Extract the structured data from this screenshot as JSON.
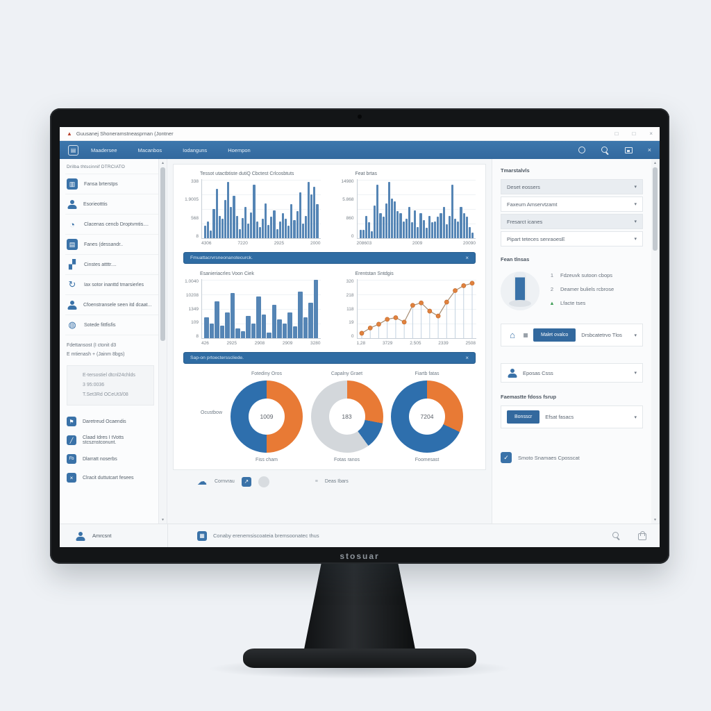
{
  "colors": {
    "menubar_blue": "#33699e",
    "banner_blue": "#2f6ca3",
    "bar_blue": "#5585b5",
    "line_stroke": "#a58a6f",
    "point_orange": "#e0823f",
    "stem_blue": "#c3d2e0",
    "slice_blue": "#2e6fad",
    "slice_orange": "#e87a35",
    "slice_gray": "#d3d7db"
  },
  "icons": {
    "close": "×",
    "minimize": "□",
    "maximize": "□",
    "chevron": "▾",
    "scroll_up": "▴",
    "scroll_down": "▾",
    "app_grid": "▤",
    "logo_triangle": "▲",
    "cloud": "☁",
    "house": "⌂",
    "hamburger": "≡",
    "ext_arrow": "↗",
    "check": "✓",
    "store": "▦"
  },
  "window": {
    "title": "Guusanej Shoneramstneasprnan (Jontner",
    "brand": "stosuar"
  },
  "menubar": {
    "items": [
      "Maadersee",
      "Macanbos",
      "Iodanguns",
      "Hoempon"
    ]
  },
  "sidebar": {
    "header": "Drilba thtscinnif DTRCIATO",
    "items": [
      {
        "label": "Fansa brterstps",
        "icon": "chart-badge-icon",
        "glyph": "▥",
        "style": "badge"
      },
      {
        "label": "Esorieotttis",
        "icon": "person-icon",
        "style": "person"
      },
      {
        "label": "Clacenas cencb Droptvmtis....",
        "icon": "pie-icon",
        "glyph": "◔",
        "style": "glyph"
      },
      {
        "label": "Fanes (dessandr..",
        "icon": "panel-badge-icon",
        "glyph": "▤",
        "style": "badge"
      },
      {
        "label": "Cinstes attttr....",
        "icon": "chart-lines-icon",
        "glyph": "▞",
        "style": "glyph"
      },
      {
        "label": "Iax sotor inanttd tmarsierles",
        "icon": "sync-icon",
        "glyph": "↻",
        "style": "glyph"
      },
      {
        "label": "Cfoenstransele seen itd dcaat...",
        "icon": "person-icon",
        "style": "person"
      },
      {
        "label": "Sotede fittfisfis",
        "icon": "grid-circle-icon",
        "glyph": "◍",
        "style": "glyph"
      }
    ],
    "section2_line1": "Fdettansost (I ctonit d3",
    "section2_line2": "E mtienash + (Jainm 8bgs)",
    "info_box": [
      "E-tersostiel dtcnl24chlds",
      "3 95:0036",
      "T.Set3Rd OCeUt3/08"
    ],
    "links": [
      {
        "label": "Daretreud Ocaendis",
        "icon": "flag-badge-icon",
        "glyph": "⚑"
      },
      {
        "label": "Claad Idres I tVotts stcsznstconunt.",
        "icon": "pencil-badge-icon",
        "glyph": "╱"
      },
      {
        "label": "Dlarratt noserbs",
        "icon": "fb-badge-icon",
        "glyph": "Fb"
      },
      {
        "label": "Clracit duttutcart fesees",
        "icon": "close-badge-icon",
        "glyph": "×"
      }
    ]
  },
  "main": {
    "banners": [
      {
        "text": "Fmuattacrvrsneonanotecurck."
      },
      {
        "text": "Sap-on prtoectersscliede."
      }
    ],
    "bottom_row": {
      "label1": "Cornvrau",
      "label2": "Deas Ibars"
    }
  },
  "right_panel": {
    "heading": "Tmarstalvls",
    "selects": [
      "Deset eossers",
      "Faxeum Amservtzamt",
      "Fresarct icanes",
      "Pipart teteces senraoesE"
    ],
    "section2_heading": "Fean tlnsas",
    "bullets": [
      {
        "marker": "1",
        "text": "Fdzeuvk sutoon cbops"
      },
      {
        "marker": "2",
        "text": "Deamer buliels rcbrose"
      },
      {
        "marker": "▲",
        "text": "Lfacte tses"
      }
    ],
    "action_row": {
      "button": "Malet ovalco",
      "label": "Drsbcatetrvo Tlos"
    },
    "dropdown_row": {
      "label": "Eposas Csss"
    },
    "section3_heading": "Faemastte fdoss fsrup",
    "report_row": {
      "button": "Bonsscr",
      "label": "Efsat fasacs"
    },
    "footer_link": "Smoto Snamaes Cposscat"
  },
  "statusbar": {
    "user": "Amrcsnt",
    "message": "Conaby erenemsiscoateia bremsoonatec thus"
  },
  "chart_data": [
    {
      "type": "bar",
      "title": "Tessot utactbtiste dutiQ Cbctest Crlcosbtuts",
      "values": [
        22,
        30,
        14,
        52,
        88,
        40,
        34,
        68,
        100,
        55,
        75,
        40,
        16,
        36,
        55,
        26,
        46,
        95,
        30,
        20,
        34,
        62,
        24,
        38,
        50,
        16,
        30,
        44,
        34,
        22,
        60,
        32,
        48,
        82,
        26,
        40,
        100,
        78,
        92,
        60
      ],
      "ymax": 105,
      "yticks": [
        "338",
        "1.9005",
        "568",
        "8"
      ],
      "xticks": [
        "4306",
        "7220",
        "2925",
        "2000"
      ],
      "grid": true,
      "legend": "none"
    },
    {
      "type": "bar",
      "title": "Feat brtas",
      "values": [
        15,
        15,
        40,
        28,
        12,
        58,
        95,
        45,
        38,
        62,
        100,
        70,
        65,
        48,
        45,
        30,
        35,
        55,
        28,
        50,
        20,
        45,
        32,
        18,
        40,
        28,
        30,
        38,
        45,
        55,
        25,
        40,
        95,
        35,
        30,
        55,
        45,
        38,
        20,
        10
      ],
      "ymax": 105,
      "yticks": [
        "14980",
        "5.868",
        "860",
        "0"
      ],
      "xticks": [
        "208603",
        "2009",
        "20090"
      ],
      "grid": true,
      "legend": "none"
    },
    {
      "type": "bar",
      "title": "Esanieriacrles Voon Ciek",
      "values": [
        42,
        30,
        75,
        25,
        52,
        92,
        20,
        14,
        45,
        30,
        85,
        48,
        12,
        68,
        38,
        30,
        52,
        24,
        95,
        42,
        72,
        118
      ],
      "ymax": 120,
      "yticks": [
        "1.0040",
        "10208",
        "1349",
        "109",
        "8"
      ],
      "xticks": [
        "426",
        "2925",
        "2908",
        "2909",
        "3280"
      ],
      "grid": true,
      "legend": "none"
    },
    {
      "type": "line",
      "title": "Erentstan Sntdgis",
      "values": [
        30,
        62,
        85,
        115,
        125,
        98,
        200,
        215,
        165,
        135,
        220,
        290,
        320,
        335
      ],
      "ymax": 360,
      "yticks": [
        "320",
        "218",
        "118",
        "19",
        "0"
      ],
      "xticks": [
        "1,28",
        "3729",
        "2.505",
        "2339",
        "2508"
      ],
      "grid": true,
      "markers": "circle",
      "stems": true,
      "legend": "none"
    },
    {
      "type": "pie",
      "title": "Fotediny Oros",
      "center": "1009",
      "label_below": "Fiss cham",
      "side_label": "Ocustbow",
      "slices": [
        {
          "name": "orange",
          "pct": 50
        },
        {
          "name": "blue",
          "pct": 50
        }
      ]
    },
    {
      "type": "pie",
      "title": "Capalny Graet",
      "center": "183",
      "label_below": "Fotas ranos",
      "slices": [
        {
          "name": "orange",
          "pct": 28
        },
        {
          "name": "blue",
          "pct": 12
        },
        {
          "name": "gray",
          "pct": 60
        }
      ]
    },
    {
      "type": "pie",
      "title": "Fiartb fatas",
      "center": "7204",
      "label_below": "Foomesast",
      "slices": [
        {
          "name": "orange",
          "pct": 32
        },
        {
          "name": "blue",
          "pct": 68
        }
      ]
    }
  ]
}
